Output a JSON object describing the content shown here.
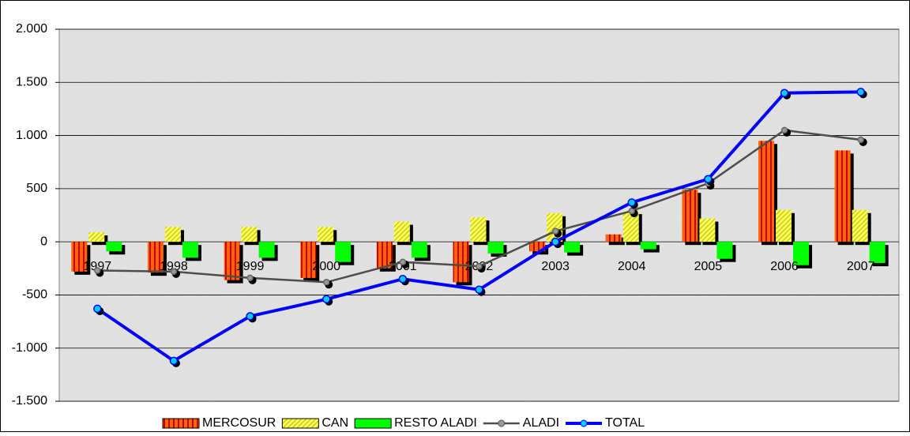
{
  "chart_data": {
    "type": "bar",
    "categories": [
      "1997",
      "1998",
      "1999",
      "2000",
      "2001",
      "2002",
      "2003",
      "2004",
      "2005",
      "2006",
      "2007"
    ],
    "series": [
      {
        "name": "MERCOSUR",
        "type": "bar",
        "color": "#ff6600",
        "values": [
          -280,
          -290,
          -360,
          -340,
          -250,
          -380,
          -90,
          70,
          490,
          950,
          860
        ]
      },
      {
        "name": "CAN",
        "type": "bar",
        "color": "#ffff66",
        "values": [
          90,
          140,
          140,
          140,
          190,
          230,
          270,
          290,
          220,
          300,
          300
        ]
      },
      {
        "name": "RESTO ALADI",
        "type": "bar",
        "color": "#00ff00",
        "values": [
          -90,
          -150,
          -150,
          -190,
          -150,
          -110,
          -100,
          -70,
          -160,
          -220,
          -200
        ]
      },
      {
        "name": "ALADI",
        "type": "line",
        "color": "#4d4d4d",
        "values": [
          -270,
          -280,
          -340,
          -380,
          -190,
          -230,
          100,
          290,
          550,
          1050,
          960
        ]
      },
      {
        "name": "TOTAL",
        "type": "line",
        "color": "#0000ff",
        "values": [
          -630,
          -1120,
          -700,
          -540,
          -350,
          -450,
          0,
          370,
          590,
          1400,
          1410
        ]
      }
    ],
    "ylim": [
      -1500,
      2000
    ],
    "yticks": [
      {
        "value": -1500,
        "label": "-1.500"
      },
      {
        "value": -1000,
        "label": "-1.000"
      },
      -500,
      0,
      500,
      {
        "value": 1000,
        "label": "1.000"
      },
      {
        "value": 1500,
        "label": "1.500"
      },
      {
        "value": 2000,
        "label": "2.000"
      }
    ],
    "grid": true,
    "legend": "bottom"
  }
}
